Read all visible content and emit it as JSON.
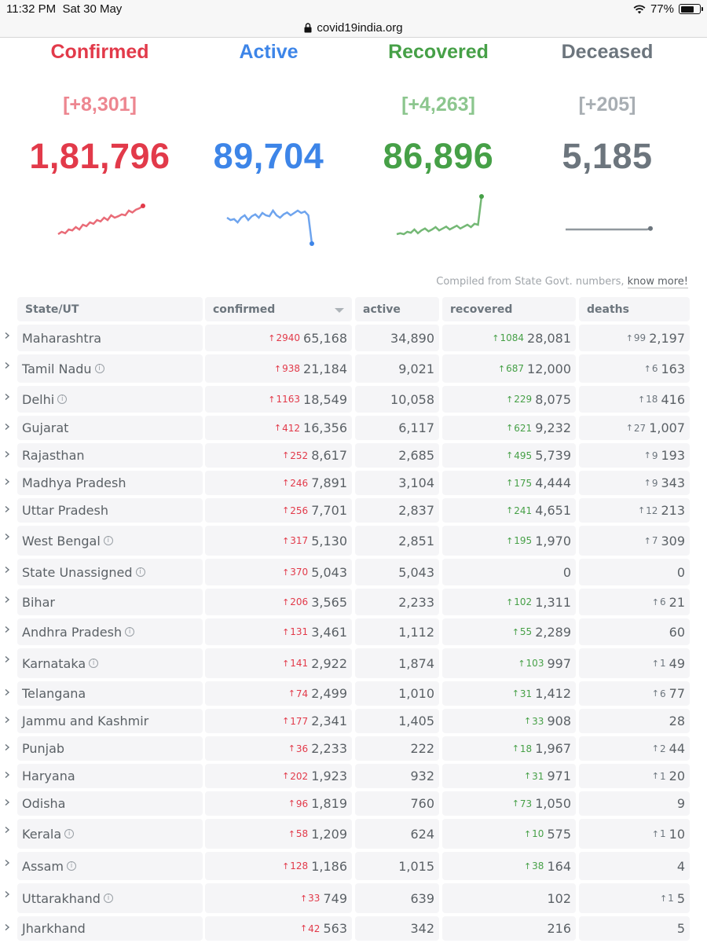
{
  "statusbar": {
    "time": "11:32 PM",
    "date": "Sat 30 May",
    "battery": "77%",
    "battery_level": 0.77
  },
  "urlbar": {
    "url": "covid19india.org"
  },
  "stats": [
    {
      "title": "Confirmed",
      "delta": "[+8,301]",
      "total": "1,81,796",
      "color": "#e23a4a",
      "trend": [
        0.2,
        0.25,
        0.22,
        0.3,
        0.28,
        0.35,
        0.3,
        0.4,
        0.37,
        0.45,
        0.42,
        0.5,
        0.47,
        0.55,
        0.5,
        0.6,
        0.55,
        0.58,
        0.62,
        0.6,
        0.7,
        0.66,
        0.72,
        0.75,
        0.8
      ]
    },
    {
      "title": "Active",
      "delta": "",
      "total": "89,704",
      "color": "#3d85e8",
      "trend": [
        0.55,
        0.5,
        0.52,
        0.45,
        0.55,
        0.6,
        0.5,
        0.58,
        0.62,
        0.55,
        0.65,
        0.6,
        0.58,
        0.7,
        0.6,
        0.55,
        0.62,
        0.66,
        0.6,
        0.65,
        0.7,
        0.65,
        0.68,
        0.6,
        0.0
      ]
    },
    {
      "title": "Recovered",
      "delta": "[+4,263]",
      "total": "86,896",
      "color": "#46a047",
      "trend": [
        0.2,
        0.22,
        0.2,
        0.25,
        0.23,
        0.3,
        0.22,
        0.28,
        0.32,
        0.26,
        0.3,
        0.35,
        0.28,
        0.32,
        0.36,
        0.3,
        0.34,
        0.38,
        0.32,
        0.36,
        0.4,
        0.35,
        0.42,
        0.4,
        1.0
      ]
    },
    {
      "title": "Deceased",
      "delta": "[+205]",
      "total": "5,185",
      "color": "#6c757d",
      "trend": [
        0.3,
        0.3,
        0.3,
        0.3,
        0.3,
        0.3,
        0.3,
        0.3,
        0.3,
        0.3,
        0.3,
        0.3,
        0.3,
        0.3,
        0.3,
        0.3,
        0.3,
        0.3,
        0.3,
        0.3,
        0.3,
        0.3,
        0.3,
        0.3,
        0.32
      ]
    }
  ],
  "compiled": {
    "text": "Compiled from State Govt. numbers,",
    "link": "know more!"
  },
  "table": {
    "headers": {
      "state": "State/UT",
      "confirmed": "confirmed",
      "active": "active",
      "recovered": "recovered",
      "deaths": "deaths"
    },
    "rows": [
      {
        "state": "Maharashtra",
        "info": false,
        "dconf": "2940",
        "conf": "65,168",
        "act": "34,890",
        "drec": "1084",
        "rec": "28,081",
        "ddea": "99",
        "dea": "2,197"
      },
      {
        "state": "Tamil Nadu",
        "info": true,
        "dconf": "938",
        "conf": "21,184",
        "act": "9,021",
        "drec": "687",
        "rec": "12,000",
        "ddea": "6",
        "dea": "163"
      },
      {
        "state": "Delhi",
        "info": true,
        "dconf": "1163",
        "conf": "18,549",
        "act": "10,058",
        "drec": "229",
        "rec": "8,075",
        "ddea": "18",
        "dea": "416"
      },
      {
        "state": "Gujarat",
        "info": false,
        "dconf": "412",
        "conf": "16,356",
        "act": "6,117",
        "drec": "621",
        "rec": "9,232",
        "ddea": "27",
        "dea": "1,007"
      },
      {
        "state": "Rajasthan",
        "info": false,
        "dconf": "252",
        "conf": "8,617",
        "act": "2,685",
        "drec": "495",
        "rec": "5,739",
        "ddea": "9",
        "dea": "193"
      },
      {
        "state": "Madhya Pradesh",
        "info": false,
        "dconf": "246",
        "conf": "7,891",
        "act": "3,104",
        "drec": "175",
        "rec": "4,444",
        "ddea": "9",
        "dea": "343"
      },
      {
        "state": "Uttar Pradesh",
        "info": false,
        "dconf": "256",
        "conf": "7,701",
        "act": "2,837",
        "drec": "241",
        "rec": "4,651",
        "ddea": "12",
        "dea": "213"
      },
      {
        "state": "West Bengal",
        "info": true,
        "dconf": "317",
        "conf": "5,130",
        "act": "2,851",
        "drec": "195",
        "rec": "1,970",
        "ddea": "7",
        "dea": "309"
      },
      {
        "state": "State Unassigned",
        "info": true,
        "dconf": "370",
        "conf": "5,043",
        "act": "5,043",
        "drec": "",
        "rec": "0",
        "ddea": "",
        "dea": "0"
      },
      {
        "state": "Bihar",
        "info": false,
        "dconf": "206",
        "conf": "3,565",
        "act": "2,233",
        "drec": "102",
        "rec": "1,311",
        "ddea": "6",
        "dea": "21"
      },
      {
        "state": "Andhra Pradesh",
        "info": true,
        "dconf": "131",
        "conf": "3,461",
        "act": "1,112",
        "drec": "55",
        "rec": "2,289",
        "ddea": "",
        "dea": "60"
      },
      {
        "state": "Karnataka",
        "info": true,
        "dconf": "141",
        "conf": "2,922",
        "act": "1,874",
        "drec": "103",
        "rec": "997",
        "ddea": "1",
        "dea": "49"
      },
      {
        "state": "Telangana",
        "info": false,
        "dconf": "74",
        "conf": "2,499",
        "act": "1,010",
        "drec": "31",
        "rec": "1,412",
        "ddea": "6",
        "dea": "77"
      },
      {
        "state": "Jammu and Kashmir",
        "info": false,
        "dconf": "177",
        "conf": "2,341",
        "act": "1,405",
        "drec": "33",
        "rec": "908",
        "ddea": "",
        "dea": "28"
      },
      {
        "state": "Punjab",
        "info": false,
        "dconf": "36",
        "conf": "2,233",
        "act": "222",
        "drec": "18",
        "rec": "1,967",
        "ddea": "2",
        "dea": "44"
      },
      {
        "state": "Haryana",
        "info": false,
        "dconf": "202",
        "conf": "1,923",
        "act": "932",
        "drec": "31",
        "rec": "971",
        "ddea": "1",
        "dea": "20"
      },
      {
        "state": "Odisha",
        "info": false,
        "dconf": "96",
        "conf": "1,819",
        "act": "760",
        "drec": "73",
        "rec": "1,050",
        "ddea": "",
        "dea": "9"
      },
      {
        "state": "Kerala",
        "info": true,
        "dconf": "58",
        "conf": "1,209",
        "act": "624",
        "drec": "10",
        "rec": "575",
        "ddea": "1",
        "dea": "10"
      },
      {
        "state": "Assam",
        "info": true,
        "dconf": "128",
        "conf": "1,186",
        "act": "1,015",
        "drec": "38",
        "rec": "164",
        "ddea": "",
        "dea": "4"
      },
      {
        "state": "Uttarakhand",
        "info": true,
        "dconf": "33",
        "conf": "749",
        "act": "639",
        "drec": "",
        "rec": "102",
        "ddea": "1",
        "dea": "5"
      },
      {
        "state": "Jharkhand",
        "info": false,
        "dconf": "42",
        "conf": "563",
        "act": "342",
        "drec": "",
        "rec": "216",
        "ddea": "",
        "dea": "5"
      }
    ]
  }
}
